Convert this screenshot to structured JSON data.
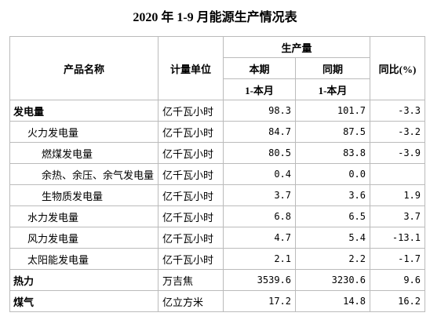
{
  "title": "2020 年 1-9 月能源生产情况表",
  "table": {
    "header": {
      "name": "产品名称",
      "unit": "计量单位",
      "output": "生产量",
      "current": "本期",
      "previous": "同期",
      "current_period": "1-本月",
      "previous_period": "1-本月",
      "yoy": "同比(%)"
    },
    "rows": [
      {
        "name": "发电量",
        "level": 0,
        "unit": "亿千瓦小时",
        "current": "98.3",
        "previous": "101.7",
        "yoy": "-3.3"
      },
      {
        "name": "火力发电量",
        "level": 1,
        "unit": "亿千瓦小时",
        "current": "84.7",
        "previous": "87.5",
        "yoy": "-3.2"
      },
      {
        "name": "燃煤发电量",
        "level": 2,
        "unit": "亿千瓦小时",
        "current": "80.5",
        "previous": "83.8",
        "yoy": "-3.9"
      },
      {
        "name": "余热、余压、余气发电量",
        "level": 2,
        "unit": "亿千瓦小时",
        "current": "0.4",
        "previous": "0.0"
      },
      {
        "name": "生物质发电量",
        "level": 2,
        "unit": "亿千瓦小时",
        "current": "3.7",
        "previous": "3.6",
        "yoy": "1.9"
      },
      {
        "name": "水力发电量",
        "level": 1,
        "unit": "亿千瓦小时",
        "current": "6.8",
        "previous": "6.5",
        "yoy": "3.7"
      },
      {
        "name": "风力发电量",
        "level": 1,
        "unit": "亿千瓦小时",
        "current": "4.7",
        "previous": "5.4",
        "yoy": "-13.1"
      },
      {
        "name": "太阳能发电量",
        "level": 1,
        "unit": "亿千瓦小时",
        "current": "2.1",
        "previous": "2.2",
        "yoy": "-1.7"
      },
      {
        "name": "热力",
        "level": 0,
        "unit": "万吉焦",
        "current": "3539.6",
        "previous": "3230.6",
        "yoy": "9.6"
      },
      {
        "name": "煤气",
        "level": 0,
        "unit": "亿立方米",
        "current": "17.2",
        "previous": "14.8",
        "yoy": "16.2"
      }
    ]
  }
}
